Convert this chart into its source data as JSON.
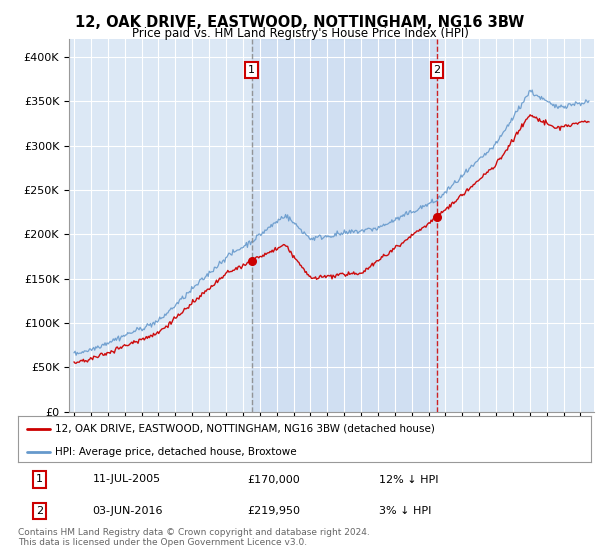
{
  "title": "12, OAK DRIVE, EASTWOOD, NOTTINGHAM, NG16 3BW",
  "subtitle": "Price paid vs. HM Land Registry's House Price Index (HPI)",
  "background_color": "#ffffff",
  "plot_bg_color": "#dce8f5",
  "red_line_label": "12, OAK DRIVE, EASTWOOD, NOTTINGHAM, NG16 3BW (detached house)",
  "blue_line_label": "HPI: Average price, detached house, Broxtowe",
  "annotation1_date": "11-JUL-2005",
  "annotation1_price": "£170,000",
  "annotation1_hpi": "12% ↓ HPI",
  "annotation2_date": "03-JUN-2016",
  "annotation2_price": "£219,950",
  "annotation2_hpi": "3% ↓ HPI",
  "footer": "Contains HM Land Registry data © Crown copyright and database right 2024.\nThis data is licensed under the Open Government Licence v3.0.",
  "ylim": [
    0,
    420000
  ],
  "yticks": [
    0,
    50000,
    100000,
    150000,
    200000,
    250000,
    300000,
    350000,
    400000
  ],
  "year_start": 1995,
  "year_end": 2025,
  "vline1_year": 2005.52,
  "vline2_year": 2016.5,
  "red_color": "#cc0000",
  "blue_color": "#6699cc",
  "vline1_color": "#888888",
  "vline2_color": "#cc0000",
  "shade_color": "#c5d8f0"
}
